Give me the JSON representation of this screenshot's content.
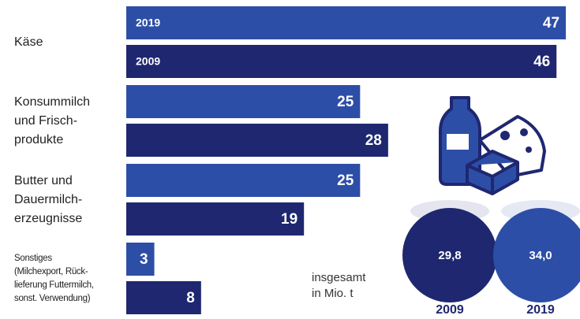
{
  "chart_data": {
    "type": "bar",
    "orientation": "horizontal",
    "categories": [
      "Käse",
      "Konsummilch\nund Frisch-\nprodukte",
      "Butter und\nDauermilch-\nerzeugnisse",
      "Sonstiges\n(Milchexport, Rück-\nlieferung Futtermilch,\nsonst. Verwendung)"
    ],
    "series": [
      {
        "name": "2019",
        "color": "#2d4ea6",
        "values": [
          47,
          25,
          25,
          3
        ]
      },
      {
        "name": "2009",
        "color": "#1e2770",
        "values": [
          46,
          28,
          19,
          8
        ]
      }
    ],
    "xlim": [
      0,
      47.5
    ],
    "totals": {
      "label": "insgesamt\nin Mio. t",
      "years": [
        "2009",
        "2019"
      ],
      "values": [
        29.8,
        34.0
      ],
      "value_labels": [
        "29,8",
        "34,0"
      ],
      "colors": [
        "#1e2770",
        "#2d4ea6"
      ]
    }
  }
}
